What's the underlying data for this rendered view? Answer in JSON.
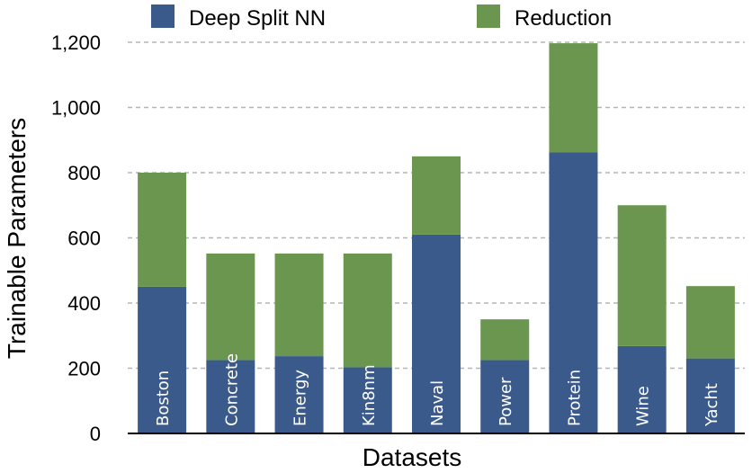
{
  "chart_data": {
    "type": "bar",
    "stacked": true,
    "categories": [
      "Boston",
      "Concrete",
      "Energy",
      "Kin8nm",
      "Naval",
      "Power",
      "Protein",
      "Wine",
      "Yacht"
    ],
    "series": [
      {
        "name": "Deep Split NN",
        "color": "#3b5a8c",
        "values": [
          450,
          225,
          237,
          203,
          610,
          225,
          862,
          268,
          230
        ]
      },
      {
        "name": "Reduction",
        "color": "#6a9650",
        "values": [
          350,
          327,
          315,
          349,
          240,
          125,
          335,
          432,
          222
        ]
      }
    ],
    "xlabel": "Datasets",
    "ylabel": "Trainable Parameters",
    "ylim": [
      0,
      1200
    ],
    "yticks": [
      0,
      200,
      400,
      600,
      800,
      1000,
      1200
    ],
    "ytick_labels": [
      "0",
      "200",
      "400",
      "600",
      "800",
      "1,000",
      "1,200"
    ],
    "grid": true,
    "legend_position": "top"
  }
}
